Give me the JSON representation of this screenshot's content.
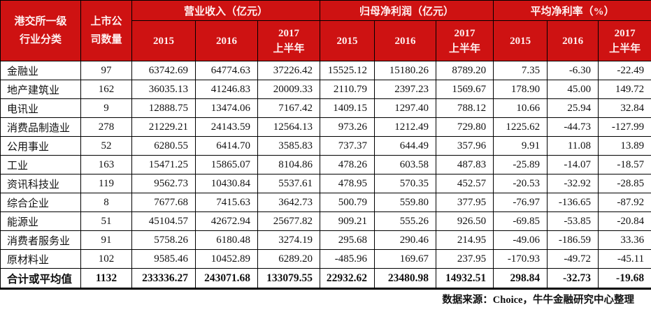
{
  "colors": {
    "header_bg": "#ce1212",
    "header_text": "#ffefef",
    "border": "#000000"
  },
  "table": {
    "header": {
      "industry_line1": "港交所一级",
      "industry_line2": "行业分类",
      "count_line1": "上市公",
      "count_line2": "司数量",
      "groups": [
        {
          "label": "营业收入（亿元）",
          "years": [
            {
              "label": "2015"
            },
            {
              "label": "2016"
            },
            {
              "label": "2017",
              "sub": "上半年"
            }
          ]
        },
        {
          "label": "归母净利润（亿元）",
          "years": [
            {
              "label": "2015"
            },
            {
              "label": "2016"
            },
            {
              "label": "2017",
              "sub": "上半年"
            }
          ]
        },
        {
          "label": "平均净利率（%）",
          "years": [
            {
              "label": "2015"
            },
            {
              "label": "2016"
            },
            {
              "label": "2017",
              "sub": "上半年"
            }
          ]
        }
      ]
    },
    "rows": [
      {
        "industry": "金融业",
        "count": "97",
        "revenue": [
          "63742.69",
          "64774.63",
          "37226.42"
        ],
        "profit": [
          "15525.12",
          "15180.26",
          "8789.20"
        ],
        "margin": [
          "7.35",
          "-6.30",
          "-22.49"
        ]
      },
      {
        "industry": "地产建筑业",
        "count": "162",
        "revenue": [
          "36035.13",
          "41246.83",
          "20009.33"
        ],
        "profit": [
          "2110.79",
          "2397.23",
          "1569.67"
        ],
        "margin": [
          "178.90",
          "45.00",
          "149.72"
        ]
      },
      {
        "industry": "电讯业",
        "count": "9",
        "revenue": [
          "12888.75",
          "13474.06",
          "7167.42"
        ],
        "profit": [
          "1409.15",
          "1297.40",
          "788.12"
        ],
        "margin": [
          "10.66",
          "25.94",
          "32.84"
        ]
      },
      {
        "industry": "消费品制造业",
        "count": "278",
        "revenue": [
          "21229.21",
          "24143.59",
          "12564.13"
        ],
        "profit": [
          "973.26",
          "1212.49",
          "729.80"
        ],
        "margin": [
          "1225.62",
          "-44.73",
          "-127.99"
        ]
      },
      {
        "industry": "公用事业",
        "count": "52",
        "revenue": [
          "6280.55",
          "6414.70",
          "3585.83"
        ],
        "profit": [
          "737.37",
          "644.49",
          "357.96"
        ],
        "margin": [
          "9.91",
          "11.08",
          "13.89"
        ]
      },
      {
        "industry": "工业",
        "count": "163",
        "revenue": [
          "15471.25",
          "15865.07",
          "8104.86"
        ],
        "profit": [
          "478.26",
          "603.58",
          "487.83"
        ],
        "margin": [
          "-25.89",
          "-14.07",
          "-18.57"
        ]
      },
      {
        "industry": "资讯科技业",
        "count": "119",
        "revenue": [
          "9562.73",
          "10430.84",
          "5537.61"
        ],
        "profit": [
          "478.95",
          "570.35",
          "452.57"
        ],
        "margin": [
          "-20.53",
          "-32.92",
          "-28.85"
        ]
      },
      {
        "industry": "综合企业",
        "count": "8",
        "revenue": [
          "7677.68",
          "7415.63",
          "3642.73"
        ],
        "profit": [
          "500.79",
          "559.80",
          "377.95"
        ],
        "margin": [
          "-76.97",
          "-136.65",
          "-87.92"
        ]
      },
      {
        "industry": "能源业",
        "count": "51",
        "revenue": [
          "45104.57",
          "42672.94",
          "25677.82"
        ],
        "profit": [
          "909.21",
          "555.26",
          "926.50"
        ],
        "margin": [
          "-69.85",
          "-53.85",
          "-20.84"
        ]
      },
      {
        "industry": "消费者服务业",
        "count": "91",
        "revenue": [
          "5758.26",
          "6180.48",
          "3274.19"
        ],
        "profit": [
          "295.68",
          "290.46",
          "214.95"
        ],
        "margin": [
          "-49.06",
          "-186.59",
          "33.36"
        ]
      },
      {
        "industry": "原材料业",
        "count": "102",
        "revenue": [
          "9585.46",
          "10452.89",
          "6289.20"
        ],
        "profit": [
          "-485.96",
          "169.67",
          "237.95"
        ],
        "margin": [
          "-170.93",
          "-49.72",
          "-45.11"
        ]
      }
    ],
    "total_row": {
      "industry": "合计或平均值",
      "count": "1132",
      "revenue": [
        "233336.27",
        "243071.68",
        "133079.55"
      ],
      "profit": [
        "22932.62",
        "23480.98",
        "14932.51"
      ],
      "margin": [
        "298.84",
        "-32.73",
        "-19.68"
      ]
    },
    "footer": "数据来源：Choice，牛牛金融研究中心整理"
  }
}
